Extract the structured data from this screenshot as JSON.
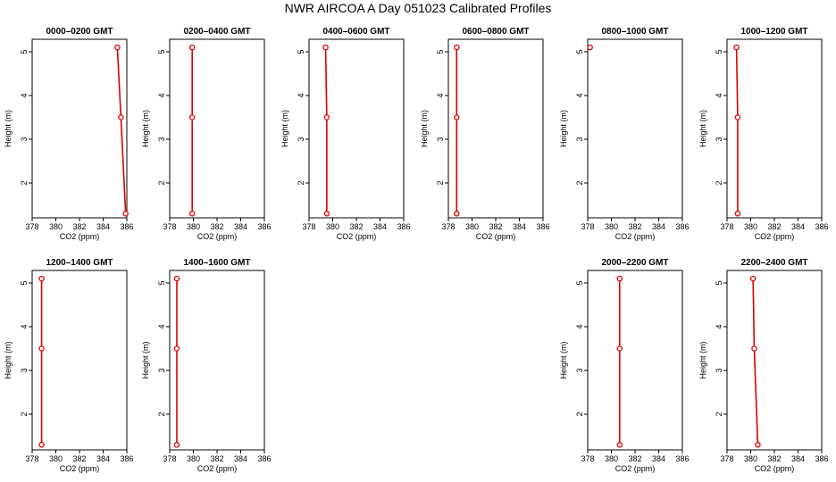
{
  "title": "NWR AIRCOA A  Day 051023  Calibrated Profiles",
  "colors": {
    "profile": "#dd0000",
    "axes": "#000000"
  },
  "chart_data": [
    {
      "type": "line",
      "title": "0000–0200 GMT",
      "xlabel": "CO2 (ppm)",
      "ylabel": "Height (m)",
      "xlim": [
        378,
        386
      ],
      "xticks": [
        "378",
        "380",
        "382",
        "384",
        "386"
      ],
      "ylim": [
        1.3,
        5.1
      ],
      "yticks": [
        "2",
        "3",
        "4",
        "5"
      ],
      "series": [
        {
          "x": [
            385.2,
            385.5,
            385.9
          ],
          "y": [
            5.1,
            3.5,
            1.3
          ]
        }
      ]
    },
    {
      "type": "line",
      "title": "0200–0400 GMT",
      "xlabel": "CO2 (ppm)",
      "ylabel": "Height (m)",
      "xlim": [
        378,
        386
      ],
      "xticks": [
        "378",
        "380",
        "382",
        "384",
        "386"
      ],
      "ylim": [
        1.3,
        5.1
      ],
      "yticks": [
        "2",
        "3",
        "4",
        "5"
      ],
      "series": [
        {
          "x": [
            379.9,
            379.9,
            379.9
          ],
          "y": [
            5.1,
            3.5,
            1.3
          ]
        }
      ]
    },
    {
      "type": "line",
      "title": "0400–0600 GMT",
      "xlabel": "CO2 (ppm)",
      "ylabel": "Height (m)",
      "xlim": [
        378,
        386
      ],
      "xticks": [
        "378",
        "380",
        "382",
        "384",
        "386"
      ],
      "ylim": [
        1.3,
        5.1
      ],
      "yticks": [
        "2",
        "3",
        "4",
        "5"
      ],
      "series": [
        {
          "x": [
            379.4,
            379.5,
            379.5
          ],
          "y": [
            5.1,
            3.5,
            1.3
          ]
        }
      ]
    },
    {
      "type": "line",
      "title": "0600–0800 GMT",
      "xlabel": "CO2 (ppm)",
      "ylabel": "Height (m)",
      "xlim": [
        378,
        386
      ],
      "xticks": [
        "378",
        "380",
        "382",
        "384",
        "386"
      ],
      "ylim": [
        1.3,
        5.1
      ],
      "yticks": [
        "2",
        "3",
        "4",
        "5"
      ],
      "series": [
        {
          "x": [
            378.7,
            378.7,
            378.7
          ],
          "y": [
            5.1,
            3.5,
            1.3
          ]
        }
      ]
    },
    {
      "type": "line",
      "title": "0800–1000 GMT",
      "xlabel": "CO2 (ppm)",
      "ylabel": "Height (m)",
      "xlim": [
        378,
        386
      ],
      "xticks": [
        "378",
        "380",
        "382",
        "384",
        "386"
      ],
      "ylim": [
        1.3,
        5.1
      ],
      "yticks": [
        "2",
        "3",
        "4",
        "5"
      ],
      "series": [
        {
          "x": [
            378.2
          ],
          "y": [
            5.1
          ]
        }
      ]
    },
    {
      "type": "line",
      "title": "1000–1200 GMT",
      "xlabel": "CO2 (ppm)",
      "ylabel": "Height (m)",
      "xlim": [
        378,
        386
      ],
      "xticks": [
        "378",
        "380",
        "382",
        "384",
        "386"
      ],
      "ylim": [
        1.3,
        5.1
      ],
      "yticks": [
        "2",
        "3",
        "4",
        "5"
      ],
      "series": [
        {
          "x": [
            378.8,
            378.9,
            378.9
          ],
          "y": [
            5.1,
            3.5,
            1.3
          ]
        }
      ]
    },
    {
      "type": "line",
      "title": "1200–1400 GMT",
      "xlabel": "CO2 (ppm)",
      "ylabel": "Height (m)",
      "xlim": [
        378,
        386
      ],
      "xticks": [
        "378",
        "380",
        "382",
        "384",
        "386"
      ],
      "ylim": [
        1.3,
        5.1
      ],
      "yticks": [
        "2",
        "3",
        "4",
        "5"
      ],
      "series": [
        {
          "x": [
            378.8,
            378.8,
            378.8
          ],
          "y": [
            5.1,
            3.5,
            1.3
          ]
        }
      ]
    },
    {
      "type": "line",
      "title": "1400–1600 GMT",
      "xlabel": "CO2 (ppm)",
      "ylabel": "Height (m)",
      "xlim": [
        378,
        386
      ],
      "xticks": [
        "378",
        "380",
        "382",
        "384",
        "386"
      ],
      "ylim": [
        1.3,
        5.1
      ],
      "yticks": [
        "2",
        "3",
        "4",
        "5"
      ],
      "series": [
        {
          "x": [
            378.6,
            378.6,
            378.6
          ],
          "y": [
            5.1,
            3.5,
            1.3
          ]
        }
      ]
    },
    null,
    null,
    {
      "type": "line",
      "title": "2000–2200 GMT",
      "xlabel": "CO2 (ppm)",
      "ylabel": "Height (m)",
      "xlim": [
        378,
        386
      ],
      "xticks": [
        "378",
        "380",
        "382",
        "384",
        "386"
      ],
      "ylim": [
        1.3,
        5.1
      ],
      "yticks": [
        "2",
        "3",
        "4",
        "5"
      ],
      "series": [
        {
          "x": [
            380.7,
            380.7,
            380.7
          ],
          "y": [
            5.1,
            3.5,
            1.3
          ]
        }
      ]
    },
    {
      "type": "line",
      "title": "2200–2400 GMT",
      "xlabel": "CO2 (ppm)",
      "ylabel": "Height (m)",
      "xlim": [
        378,
        386
      ],
      "xticks": [
        "378",
        "380",
        "382",
        "384",
        "386"
      ],
      "ylim": [
        1.3,
        5.1
      ],
      "yticks": [
        "2",
        "3",
        "4",
        "5"
      ],
      "series": [
        {
          "x": [
            380.2,
            380.3,
            380.6
          ],
          "y": [
            5.1,
            3.5,
            1.3
          ]
        }
      ]
    }
  ]
}
